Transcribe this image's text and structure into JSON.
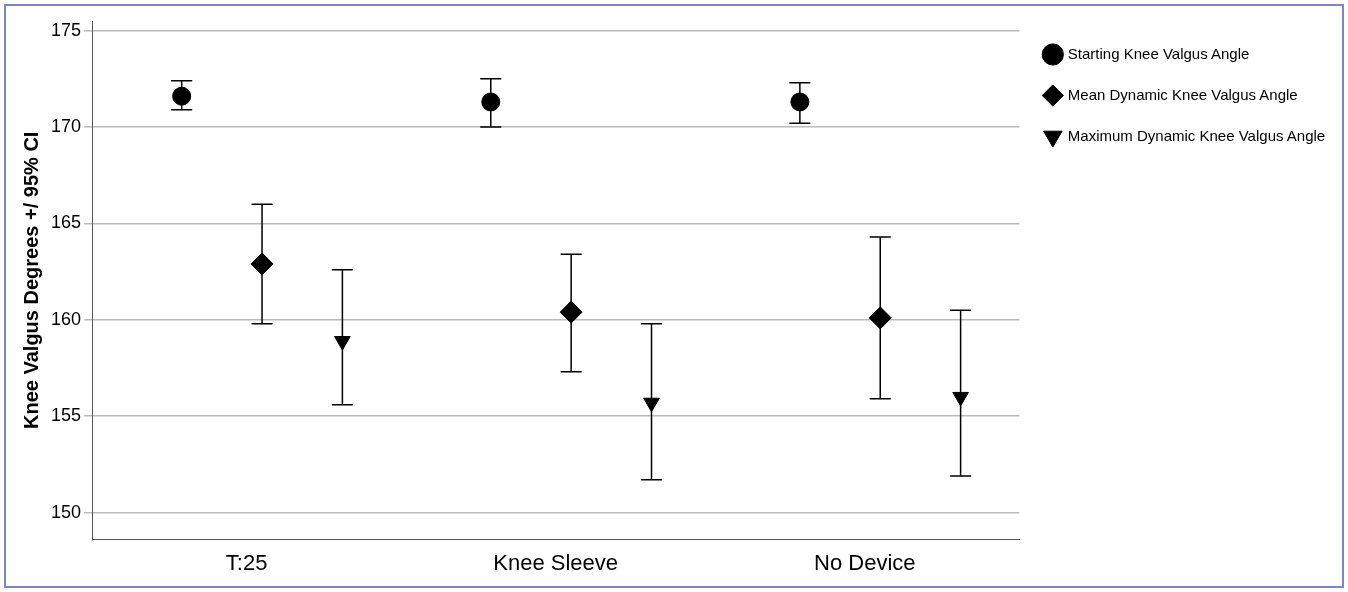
{
  "chart_data": {
    "type": "scatter",
    "ylabel": "Knee Valgus Degrees +/ 95% CI",
    "categories": [
      "T:25",
      "Knee Sleeve",
      "No Device"
    ],
    "ylim": [
      148.6,
      175.5
    ],
    "yticks": [
      150,
      155,
      160,
      165,
      170,
      175
    ],
    "grid": "y",
    "legend": "top right",
    "series": [
      {
        "name": "Starting Knee Valgus Angle",
        "color": "#000000",
        "marker": "circle",
        "values": [
          171.6,
          171.3,
          171.3
        ],
        "errors": [
          [
            170.9,
            172.4
          ],
          [
            170.0,
            172.5
          ],
          [
            170.2,
            172.3
          ]
        ]
      },
      {
        "name": "Mean Dynamic Knee Valgus Angle",
        "color": "#000000",
        "marker": "diamond",
        "values": [
          162.9,
          160.4,
          160.1
        ],
        "errors": [
          [
            159.8,
            166.0
          ],
          [
            157.3,
            163.4
          ],
          [
            155.9,
            164.3
          ]
        ]
      },
      {
        "name": "Maximum Dynamic Knee Valgus Angle",
        "color": "#000000",
        "marker": "triangle",
        "values": [
          158.9,
          155.7,
          156.0
        ],
        "errors": [
          [
            155.6,
            162.6
          ],
          [
            151.7,
            159.8
          ],
          [
            151.9,
            160.5
          ]
        ]
      }
    ]
  }
}
